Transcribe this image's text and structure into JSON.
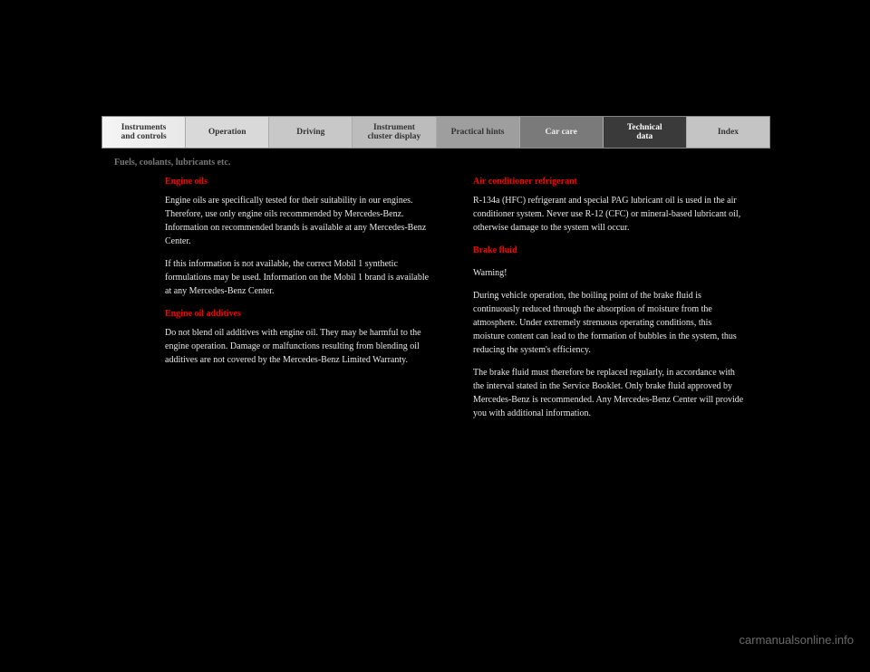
{
  "tabs": [
    {
      "label": "Instruments\nand controls"
    },
    {
      "label": "Operation"
    },
    {
      "label": "Driving"
    },
    {
      "label": "Instrument\ncluster display"
    },
    {
      "label": "Practical hints"
    },
    {
      "label": "Car care"
    },
    {
      "label": "Technical\ndata"
    },
    {
      "label": "Index"
    }
  ],
  "section_title": "Fuels, coolants, lubricants etc.",
  "left": {
    "h1": "Engine oils",
    "p1": "Engine oils are specifically tested for their suitability in our engines. Therefore, use only engine oils recommended by Mercedes-Benz. Information on recommended brands is available at any Mercedes-Benz Center.",
    "p2": "If this information is not available, the correct Mobil 1 synthetic formulations may be used. Information on the Mobil 1 brand is available at any Mercedes-Benz Center.",
    "h2": "Engine oil additives",
    "p3": "Do not blend oil additives with engine oil. They may be harmful to the engine operation. Damage or malfunctions resulting from blending oil additives are not covered by the Mercedes-Benz Limited Warranty."
  },
  "right": {
    "h1": "Air conditioner refrigerant",
    "p1": "R-134a (HFC) refrigerant and special PAG lubricant oil is used in the air conditioner system. Never use R-12 (CFC) or mineral-based lubricant oil, otherwise damage to the system will occur.",
    "h2": "Brake fluid",
    "warning_title": "Warning!",
    "p2": "During vehicle operation, the boiling point of the brake fluid is continuously reduced through the absorption of moisture from the atmosphere. Under extremely strenuous operating conditions, this moisture content can lead to the formation of bubbles in the system, thus reducing the system's efficiency.",
    "p3": "The brake fluid must therefore be replaced regularly, in accordance with the interval stated in the Service Booklet. Only brake fluid approved by Mercedes-Benz is recommended. Any Mercedes-Benz Center will provide you with additional information."
  },
  "watermark": "carmanualsonline.info"
}
